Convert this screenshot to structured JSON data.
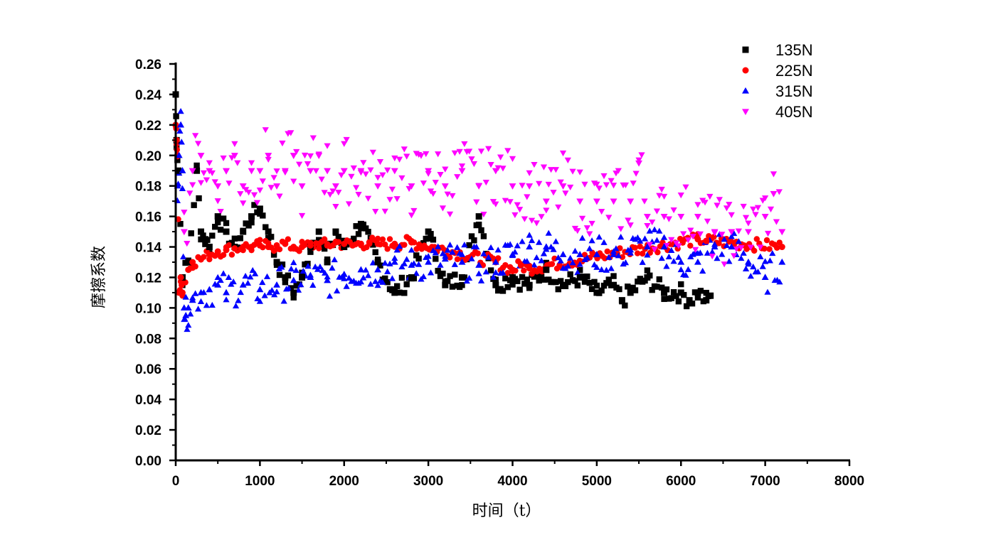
{
  "chart_data": {
    "type": "scatter",
    "title": "",
    "xlabel": "时间（t）",
    "ylabel": "摩擦系数",
    "xlim": [
      0,
      8000
    ],
    "ylim": [
      0,
      0.26
    ],
    "x_ticks": [
      0,
      1000,
      2000,
      3000,
      4000,
      5000,
      6000,
      7000,
      8000
    ],
    "x_tick_labels": [
      "0",
      "1000",
      "2000",
      "3000",
      "4000",
      "5000",
      "6000",
      "7000",
      "8000"
    ],
    "y_ticks": [
      0,
      0.02,
      0.04,
      0.06,
      0.08,
      0.1,
      0.12,
      0.14,
      0.16,
      0.18,
      0.2,
      0.22,
      0.24,
      0.26
    ],
    "y_tick_labels": [
      "0.00",
      "0.02",
      "0.04",
      "0.06",
      "0.08",
      "0.10",
      "0.12",
      "0.14",
      "0.16",
      "0.18",
      "0.20",
      "0.22",
      "0.24",
      "0.26"
    ],
    "grid": false,
    "legend_position": "top-right",
    "series": [
      {
        "name": "135N",
        "marker": "square",
        "color": "#000000",
        "x": [
          0,
          10,
          30,
          80,
          150,
          250,
          300,
          350,
          400,
          500,
          600,
          700,
          800,
          900,
          1000,
          1100,
          1200,
          1300,
          1400,
          1500,
          1600,
          1700,
          1800,
          1900,
          2000,
          2200,
          2400,
          2600,
          2800,
          3000,
          3200,
          3400,
          3600,
          3800,
          4000,
          4200,
          4400,
          4600,
          4800,
          5000,
          5200,
          5300,
          5400,
          5600,
          5800,
          6000,
          6100,
          6200,
          6300,
          6350
        ],
        "y": [
          0.24,
          0.21,
          0.19,
          0.12,
          0.13,
          0.19,
          0.15,
          0.145,
          0.14,
          0.16,
          0.15,
          0.14,
          0.15,
          0.16,
          0.165,
          0.15,
          0.13,
          0.12,
          0.11,
          0.12,
          0.14,
          0.15,
          0.13,
          0.15,
          0.14,
          0.155,
          0.13,
          0.11,
          0.12,
          0.15,
          0.115,
          0.12,
          0.16,
          0.115,
          0.12,
          0.115,
          0.125,
          0.115,
          0.12,
          0.11,
          0.115,
          0.105,
          0.11,
          0.12,
          0.11,
          0.11,
          0.105,
          0.11,
          0.105,
          0.108
        ]
      },
      {
        "name": "225N",
        "marker": "circle",
        "color": "#ff0000",
        "x": [
          0,
          10,
          20,
          40,
          60,
          80,
          150,
          200,
          300,
          400,
          500,
          600,
          700,
          800,
          900,
          1000,
          1100,
          1200,
          1300,
          1400,
          1500,
          1600,
          1700,
          1800,
          1900,
          2000,
          2100,
          2200,
          2300,
          2400,
          2600,
          2800,
          3800,
          4000,
          4100,
          4200,
          6200,
          6300,
          7200
        ],
        "y": [
          0.22,
          0.21,
          0.2,
          0.11,
          0.12,
          0.11,
          0.125,
          0.13,
          0.132,
          0.135,
          0.137,
          0.138,
          0.139,
          0.14,
          0.14,
          0.141,
          0.14,
          0.141,
          0.142,
          0.14,
          0.14,
          0.141,
          0.142,
          0.141,
          0.143,
          0.142,
          0.141,
          0.142,
          0.143,
          0.142,
          0.142,
          0.143,
          0.13,
          0.125,
          0.128,
          0.126,
          0.145,
          0.144,
          0.14
        ]
      },
      {
        "name": "315N",
        "marker": "triangle-up",
        "color": "#0000ff",
        "x": [
          20,
          40,
          60,
          80,
          100,
          120,
          150,
          200,
          300,
          400,
          500,
          600,
          800,
          1000,
          1200,
          1400,
          1600,
          1800,
          2000,
          2200,
          2400,
          2600,
          2800,
          3000,
          3200,
          3400,
          3600,
          3800,
          4000,
          4200,
          4400,
          4600,
          4800,
          5000,
          5200,
          5400,
          5600,
          5800,
          6000,
          6200,
          6400,
          6600,
          6800,
          7000,
          7200
        ],
        "y": [
          0.18,
          0.2,
          0.22,
          0.19,
          0.1,
          0.095,
          0.1,
          0.105,
          0.11,
          0.112,
          0.115,
          0.11,
          0.115,
          0.112,
          0.115,
          0.118,
          0.12,
          0.118,
          0.122,
          0.125,
          0.125,
          0.13,
          0.128,
          0.13,
          0.132,
          0.13,
          0.128,
          0.13,
          0.135,
          0.14,
          0.14,
          0.135,
          0.135,
          0.135,
          0.135,
          0.138,
          0.14,
          0.14,
          0.13,
          0.13,
          0.14,
          0.14,
          0.13,
          0.12,
          0.13
        ]
      },
      {
        "name": "405N",
        "marker": "triangle-down",
        "color": "#ff00ff",
        "x": [
          100,
          200,
          300,
          400,
          500,
          600,
          700,
          800,
          900,
          1000,
          1100,
          1200,
          1300,
          1400,
          1500,
          1600,
          1700,
          1800,
          1900,
          2000,
          2200,
          2400,
          2600,
          2800,
          3000,
          3200,
          3400,
          3600,
          3800,
          4000,
          4200,
          4400,
          4600,
          4800,
          5000,
          5200,
          5400,
          5500,
          5600,
          5800,
          6000,
          6200,
          6400,
          6600,
          6800,
          7000,
          7100,
          7200
        ],
        "y": [
          0.15,
          0.19,
          0.2,
          0.19,
          0.18,
          0.19,
          0.2,
          0.18,
          0.19,
          0.19,
          0.2,
          0.18,
          0.19,
          0.2,
          0.18,
          0.19,
          0.2,
          0.19,
          0.18,
          0.19,
          0.19,
          0.18,
          0.19,
          0.18,
          0.19,
          0.18,
          0.19,
          0.18,
          0.19,
          0.18,
          0.18,
          0.17,
          0.18,
          0.17,
          0.17,
          0.17,
          0.17,
          0.195,
          0.16,
          0.16,
          0.16,
          0.16,
          0.15,
          0.15,
          0.15,
          0.16,
          0.175,
          0.15
        ]
      }
    ]
  }
}
